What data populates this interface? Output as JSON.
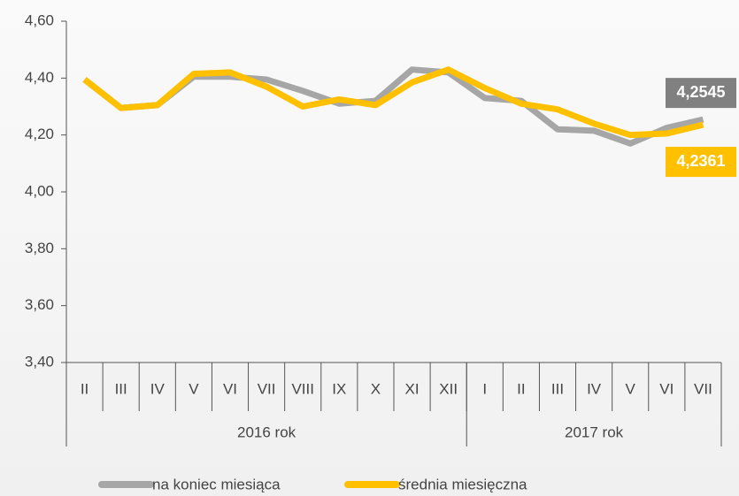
{
  "chart_data": {
    "type": "line",
    "categories": [
      "II",
      "III",
      "IV",
      "V",
      "VI",
      "VII",
      "VIII",
      "IX",
      "X",
      "XI",
      "XII",
      "I",
      "II",
      "III",
      "IV",
      "V",
      "VI",
      "VII"
    ],
    "x_groups": [
      {
        "label": "2016 rok",
        "count": 11
      },
      {
        "label": "2017 rok",
        "count": 7
      }
    ],
    "series": [
      {
        "name": "na koniec miesiąca",
        "color": "#a6a6a6",
        "values": [
          4.395,
          4.295,
          4.305,
          4.405,
          4.405,
          4.395,
          4.355,
          4.31,
          4.32,
          4.43,
          4.42,
          4.33,
          4.32,
          4.22,
          4.215,
          4.17,
          4.225,
          4.2545
        ],
        "value_labels": [
          null,
          null,
          null,
          null,
          null,
          null,
          null,
          null,
          null,
          null,
          null,
          null,
          null,
          null,
          null,
          null,
          null,
          "4,2545"
        ]
      },
      {
        "name": "średnia miesięczna",
        "color": "#ffc000",
        "values": [
          4.395,
          4.295,
          4.305,
          4.415,
          4.42,
          4.37,
          4.3,
          4.325,
          4.305,
          4.385,
          4.43,
          4.365,
          4.31,
          4.29,
          4.24,
          4.2,
          4.205,
          4.2361
        ],
        "value_labels": [
          null,
          null,
          null,
          null,
          null,
          null,
          null,
          null,
          null,
          null,
          null,
          null,
          null,
          null,
          null,
          null,
          null,
          "4,2361"
        ]
      }
    ],
    "ylim": [
      3.4,
      4.6
    ],
    "yticks": [
      {
        "value": 3.4,
        "label": "3,40"
      },
      {
        "value": 3.6,
        "label": "3,60"
      },
      {
        "value": 3.8,
        "label": "3,80"
      },
      {
        "value": 4.0,
        "label": "4,00"
      },
      {
        "value": 4.2,
        "label": "4,20"
      },
      {
        "value": 4.4,
        "label": "4,40"
      },
      {
        "value": 4.6,
        "label": "4,60"
      }
    ],
    "grid": false,
    "legend": "bottom"
  }
}
